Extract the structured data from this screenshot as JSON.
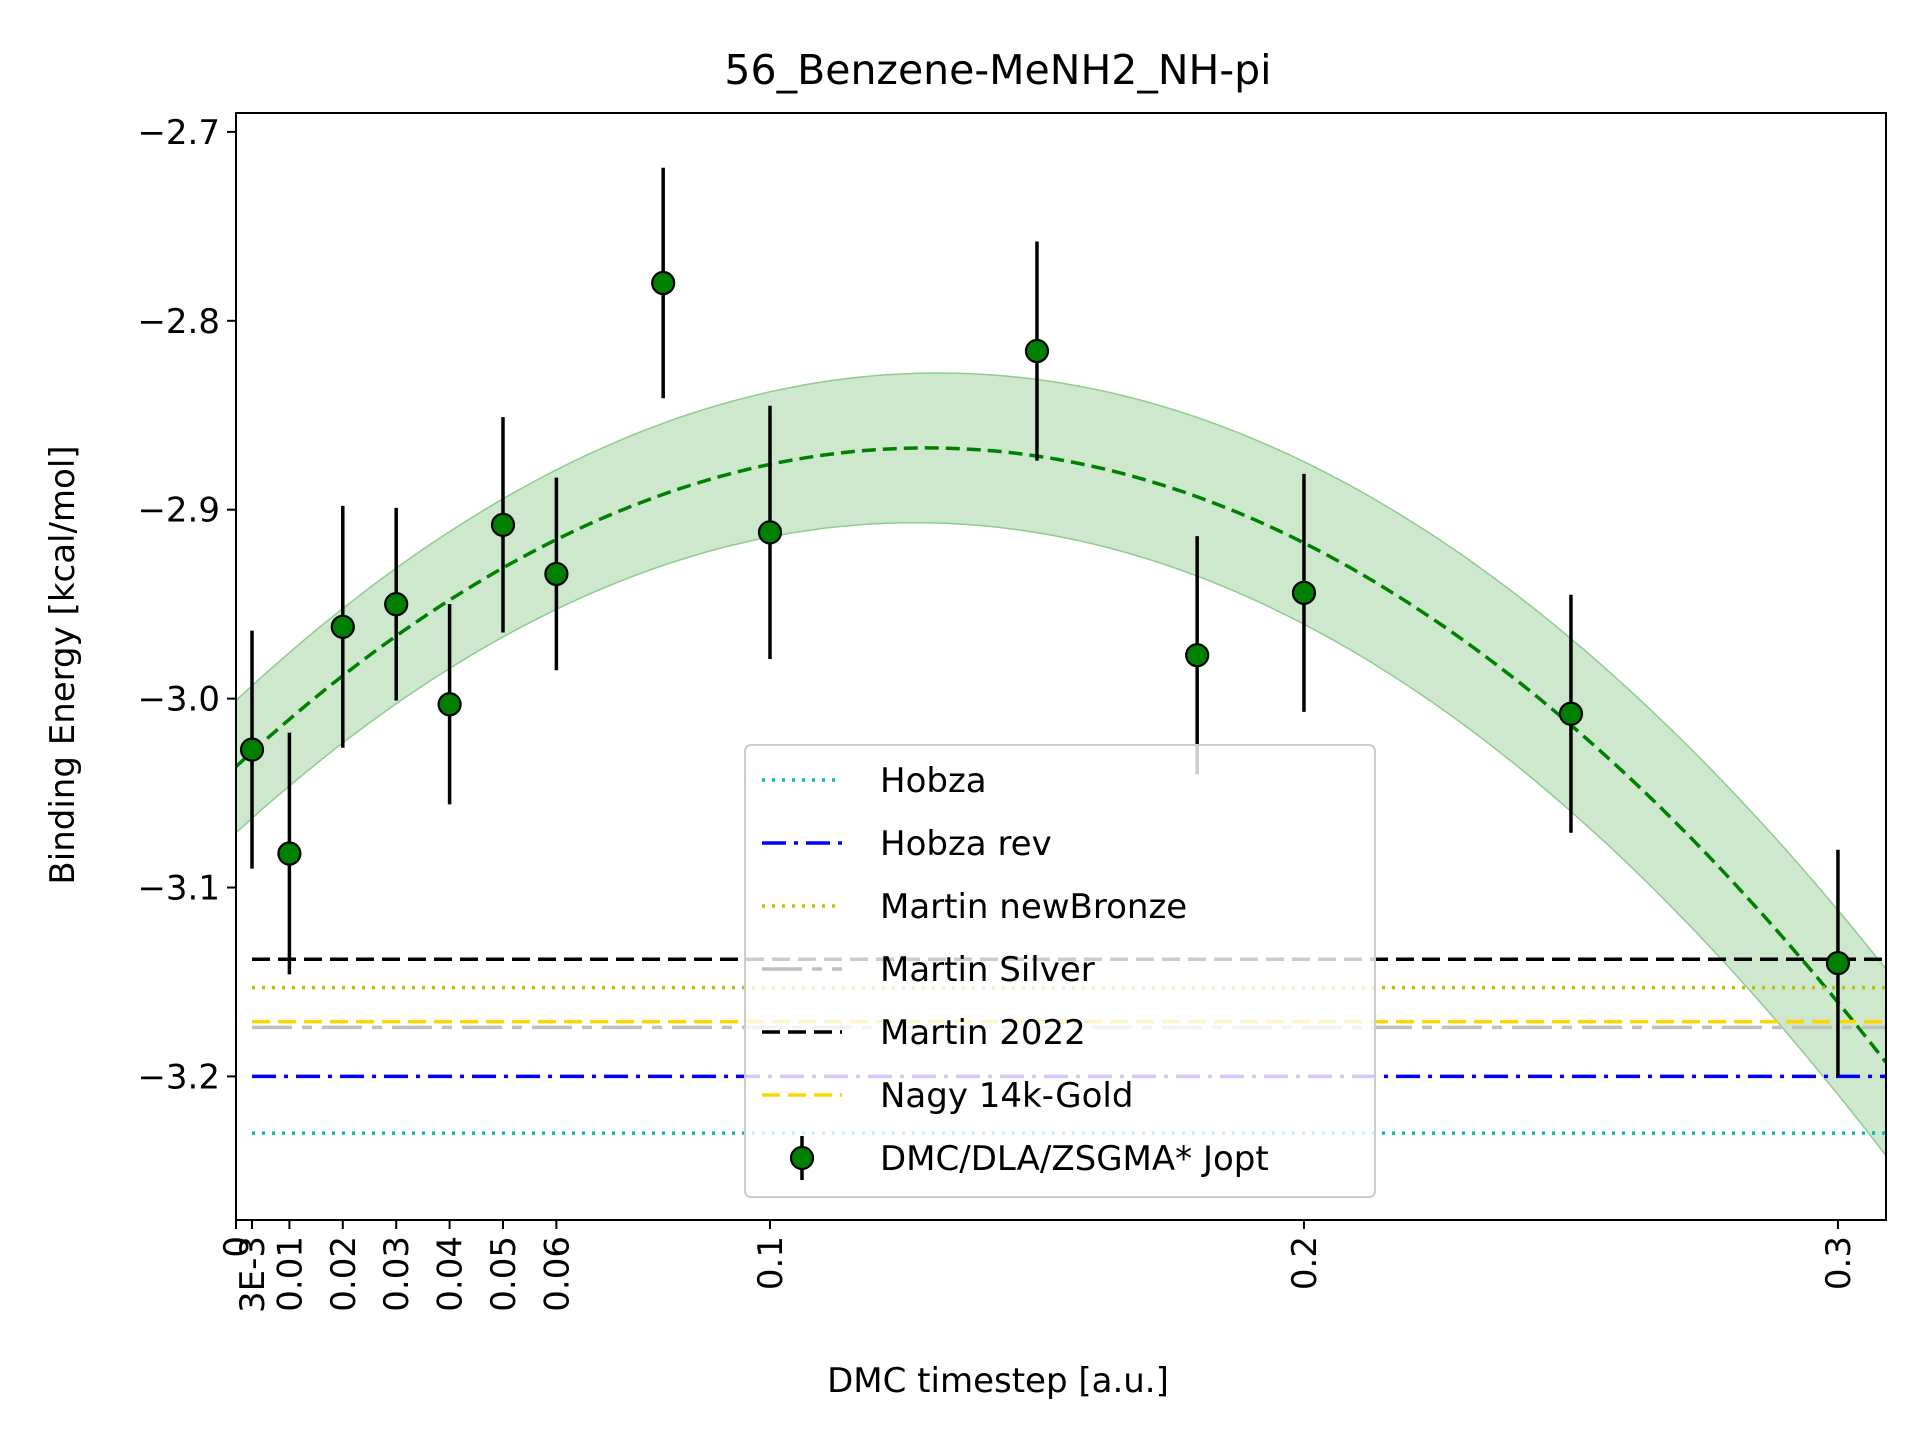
{
  "chart_data": {
    "type": "scatter",
    "title": "56_Benzene-MeNH2_NH-pi",
    "xlabel": "DMC timestep [a.u.]",
    "ylabel": "Binding Energy [kcal/mol]",
    "xlim": [
      0,
      0.309
    ],
    "ylim": [
      -3.276,
      -2.69
    ],
    "x_ticks": [
      {
        "value": 0,
        "label": "0"
      },
      {
        "value": 0.003,
        "label": "3E-3"
      },
      {
        "value": 0.01,
        "label": "0.01"
      },
      {
        "value": 0.02,
        "label": "0.02"
      },
      {
        "value": 0.03,
        "label": "0.03"
      },
      {
        "value": 0.04,
        "label": "0.04"
      },
      {
        "value": 0.05,
        "label": "0.05"
      },
      {
        "value": 0.06,
        "label": "0.06"
      },
      {
        "value": 0.1,
        "label": "0.1"
      },
      {
        "value": 0.2,
        "label": "0.2"
      },
      {
        "value": 0.3,
        "label": "0.3"
      }
    ],
    "y_ticks": [
      {
        "value": -2.7,
        "label": "−2.7"
      },
      {
        "value": -2.8,
        "label": "−2.8"
      },
      {
        "value": -2.9,
        "label": "−2.9"
      },
      {
        "value": -3.0,
        "label": "−3.0"
      },
      {
        "value": -3.1,
        "label": "−3.1"
      },
      {
        "value": -3.2,
        "label": "−3.2"
      }
    ],
    "grid": false,
    "legend_position": "lower-center",
    "reference_lines": [
      {
        "name": "Hobza",
        "y": -3.23,
        "color": "#00bfbf",
        "style": "dotted"
      },
      {
        "name": "Hobza rev",
        "y": -3.2,
        "color": "#0000ff",
        "style": "dashdot"
      },
      {
        "name": "Martin newBronze",
        "y": -3.153,
        "color": "#bfbf00",
        "style": "dotted"
      },
      {
        "name": "Martin Silver",
        "y": -3.174,
        "color": "#c0c0c0",
        "style": "longdashdot"
      },
      {
        "name": "Martin 2022",
        "y": -3.138,
        "color": "#000000",
        "style": "dashed"
      },
      {
        "name": "Nagy 14k-Gold",
        "y": -3.171,
        "color": "#ffd700",
        "style": "dashed"
      }
    ],
    "series": [
      {
        "name": "DMC/DLA/ZSGMA* Jopt",
        "color": "#008000",
        "points": [
          {
            "x": 0.003,
            "y": -3.027,
            "err": 0.063
          },
          {
            "x": 0.01,
            "y": -3.082,
            "err": 0.064
          },
          {
            "x": 0.02,
            "y": -2.962,
            "err": 0.064
          },
          {
            "x": 0.03,
            "y": -2.95,
            "err": 0.051
          },
          {
            "x": 0.04,
            "y": -3.003,
            "err": 0.053
          },
          {
            "x": 0.05,
            "y": -2.908,
            "err": 0.057
          },
          {
            "x": 0.06,
            "y": -2.934,
            "err": 0.051
          },
          {
            "x": 0.08,
            "y": -2.78,
            "err": 0.061
          },
          {
            "x": 0.1,
            "y": -2.912,
            "err": 0.067
          },
          {
            "x": 0.15,
            "y": -2.816,
            "err": 0.058
          },
          {
            "x": 0.18,
            "y": -2.977,
            "err": 0.063
          },
          {
            "x": 0.2,
            "y": -2.944,
            "err": 0.063
          },
          {
            "x": 0.25,
            "y": -3.008,
            "err": 0.063
          },
          {
            "x": 0.3,
            "y": -3.14,
            "err": 0.06
          }
        ]
      }
    ],
    "fit": {
      "color": "#008000",
      "band_color": "#90cc90",
      "style": "dashed",
      "coefficients": [
        -3.036,
        2.608,
        -10.08
      ],
      "band_halfwidth": [
        0.035,
        0.028,
        0.06
      ]
    }
  }
}
